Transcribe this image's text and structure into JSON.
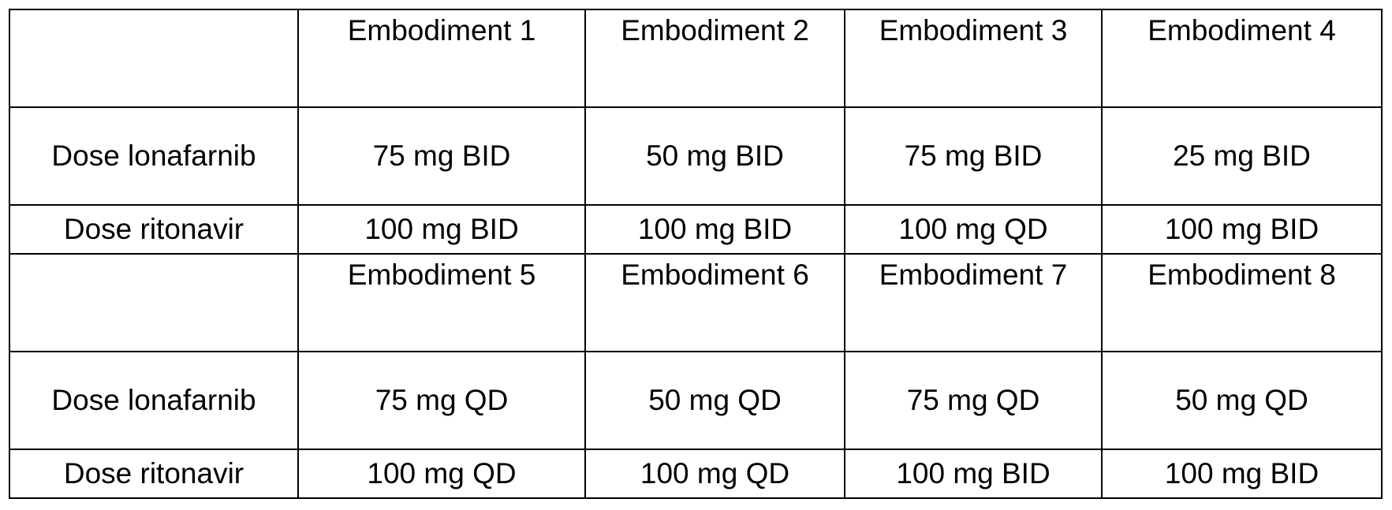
{
  "table": {
    "blocks": [
      {
        "headers": [
          "Embodiment 1",
          "Embodiment 2",
          "Embodiment 3",
          "Embodiment 4"
        ],
        "rows": [
          {
            "label": "Dose lonafarnib",
            "cells": [
              "75 mg BID",
              "50 mg BID",
              "75 mg BID",
              "25 mg BID"
            ]
          },
          {
            "label": "Dose ritonavir",
            "cells": [
              "100 mg BID",
              "100 mg BID",
              "100 mg QD",
              "100 mg BID"
            ]
          }
        ]
      },
      {
        "headers": [
          "Embodiment 5",
          "Embodiment 6",
          "Embodiment 7",
          "Embodiment 8"
        ],
        "rows": [
          {
            "label": "Dose lonafarnib",
            "cells": [
              "75 mg QD",
              "50 mg QD",
              "75 mg QD",
              "50 mg QD"
            ]
          },
          {
            "label": "Dose ritonavir",
            "cells": [
              "100 mg QD",
              "100 mg QD",
              "100 mg BID",
              "100 mg BID"
            ]
          }
        ]
      }
    ]
  }
}
